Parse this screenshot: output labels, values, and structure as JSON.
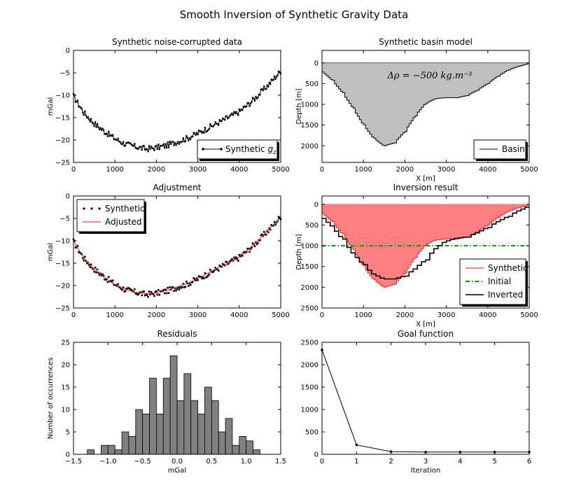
{
  "suptitle": "Smooth Inversion of Synthetic Gravity Data",
  "colors": {
    "data": "#000000",
    "adjusted": "#e31a1c",
    "basin_fill": "#bfbfbf",
    "inv_fill": "#ff8080",
    "initial": "#009900",
    "hist_bar": "#808080"
  },
  "chart_data": [
    {
      "id": "data",
      "type": "line",
      "title": "Synthetic noise-corrupted data",
      "xlabel": "",
      "ylabel": "mGal",
      "xlim": [
        0,
        5000
      ],
      "ylim": [
        -25,
        0
      ],
      "xticks": [
        "0",
        "1000",
        "2000",
        "3000",
        "4000",
        "5000"
      ],
      "yticks": [
        "0",
        "−5",
        "−10",
        "−15",
        "−20",
        "−25"
      ],
      "legend": {
        "position": "lower right",
        "entries": [
          "Synthetic $g_z$"
        ]
      },
      "series": [
        {
          "name": "Synthetic $g_z$",
          "marker": "dot",
          "x": [
            0,
            250,
            500,
            750,
            1000,
            1250,
            1500,
            1750,
            2000,
            2250,
            2500,
            2750,
            3000,
            3250,
            3500,
            3750,
            4000,
            4250,
            4500,
            4750,
            5000
          ],
          "y": [
            -10.2,
            -13.9,
            -16.3,
            -18.1,
            -19.7,
            -20.9,
            -21.5,
            -22.0,
            -21.7,
            -21.2,
            -20.4,
            -19.6,
            -18.5,
            -17.3,
            -16.1,
            -14.9,
            -13.7,
            -11.8,
            -9.6,
            -7.2,
            -4.6
          ]
        }
      ]
    },
    {
      "id": "basin",
      "type": "area",
      "title": "Synthetic basin model",
      "xlabel": "X [m]",
      "ylabel": "Depth [m]",
      "xlim": [
        0,
        5000
      ],
      "ylim": [
        2400,
        -300
      ],
      "y_inverted": true,
      "xticks": [
        "0",
        "1000",
        "2000",
        "3000",
        "4000",
        "5000"
      ],
      "yticks": [
        "0",
        "500",
        "1000",
        "1500",
        "2000"
      ],
      "annotation": "Δρ = −500 kg.m⁻³",
      "legend": {
        "position": "lower right",
        "entries": [
          "Basin"
        ]
      },
      "series": [
        {
          "name": "Basin",
          "x": [
            0,
            250,
            500,
            750,
            1000,
            1250,
            1500,
            1750,
            2000,
            2250,
            2500,
            2750,
            3000,
            3250,
            3500,
            3750,
            4000,
            4250,
            4500,
            4750,
            5000
          ],
          "depth": [
            200,
            420,
            720,
            1090,
            1490,
            1820,
            2000,
            1930,
            1660,
            1280,
            980,
            860,
            840,
            840,
            790,
            660,
            500,
            320,
            170,
            80,
            20
          ]
        }
      ]
    },
    {
      "id": "adjust",
      "type": "line",
      "title": "Adjustment",
      "xlabel": "",
      "ylabel": "mGal",
      "xlim": [
        0,
        5000
      ],
      "ylim": [
        -25,
        0
      ],
      "xticks": [
        "0",
        "1000",
        "2000",
        "3000",
        "4000",
        "5000"
      ],
      "yticks": [
        "0",
        "−5",
        "−10",
        "−15",
        "−20",
        "−25"
      ],
      "legend": {
        "position": "upper left",
        "entries": [
          "Synthetic",
          "Adjusted"
        ]
      },
      "series": [
        {
          "name": "Synthetic",
          "marker": "square",
          "x": [
            0,
            250,
            500,
            750,
            1000,
            1250,
            1500,
            1750,
            2000,
            2250,
            2500,
            2750,
            3000,
            3250,
            3500,
            3750,
            4000,
            4250,
            4500,
            4750,
            5000
          ],
          "y": [
            -10.2,
            -13.9,
            -16.3,
            -18.1,
            -19.7,
            -20.9,
            -21.5,
            -22.0,
            -21.7,
            -21.2,
            -20.4,
            -19.6,
            -18.5,
            -17.3,
            -16.1,
            -14.9,
            -13.7,
            -11.8,
            -9.6,
            -7.2,
            -4.6
          ]
        },
        {
          "name": "Adjusted",
          "x": [
            0,
            250,
            500,
            750,
            1000,
            1250,
            1500,
            1750,
            2000,
            2250,
            2500,
            2750,
            3000,
            3250,
            3500,
            3750,
            4000,
            4250,
            4500,
            4750,
            5000
          ],
          "y": [
            -10.1,
            -13.8,
            -16.4,
            -18.2,
            -19.8,
            -20.9,
            -21.5,
            -21.8,
            -21.7,
            -21.1,
            -20.3,
            -19.5,
            -18.4,
            -17.2,
            -16.0,
            -14.9,
            -13.6,
            -11.7,
            -9.5,
            -7.1,
            -4.8
          ]
        }
      ]
    },
    {
      "id": "inversion",
      "type": "area",
      "title": "Inversion result",
      "xlabel": "X [m]",
      "ylabel": "Depth [m]",
      "xlim": [
        0,
        5000
      ],
      "ylim": [
        2500,
        -200
      ],
      "y_inverted": true,
      "xticks": [
        "0",
        "1000",
        "2000",
        "3000",
        "4000",
        "5000"
      ],
      "yticks": [
        "0",
        "500",
        "1000",
        "1500",
        "2000",
        "2500"
      ],
      "legend": {
        "position": "lower right",
        "entries": [
          "Synthetic",
          "Initial",
          "Inverted"
        ]
      },
      "series": [
        {
          "name": "Synthetic",
          "x": [
            0,
            250,
            500,
            750,
            1000,
            1250,
            1500,
            1750,
            2000,
            2250,
            2500,
            2750,
            3000,
            3250,
            3500,
            3750,
            4000,
            4250,
            4500,
            4750,
            5000
          ],
          "depth": [
            200,
            420,
            720,
            1090,
            1490,
            1820,
            2000,
            1930,
            1660,
            1280,
            980,
            860,
            840,
            840,
            790,
            660,
            500,
            320,
            170,
            80,
            20
          ]
        },
        {
          "name": "Initial",
          "x": [
            0,
            5000
          ],
          "depth": [
            1000,
            1000
          ]
        },
        {
          "name": "Inverted",
          "x": [
            0,
            250,
            500,
            750,
            1000,
            1250,
            1500,
            1750,
            2000,
            2250,
            2500,
            2750,
            3000,
            3250,
            3500,
            3750,
            4000,
            4250,
            4500,
            4750,
            5000
          ],
          "depth": [
            300,
            520,
            840,
            1170,
            1450,
            1680,
            1800,
            1800,
            1730,
            1560,
            1340,
            1070,
            880,
            820,
            790,
            690,
            560,
            420,
            290,
            160,
            50
          ]
        }
      ]
    },
    {
      "id": "residuals",
      "type": "bar",
      "title": "Residuals",
      "xlabel": "mGal",
      "ylabel": "Number of occurrences",
      "xlim": [
        -1.5,
        1.5
      ],
      "ylim": [
        0,
        25
      ],
      "xticks": [
        "−1.5",
        "−1.0",
        "−0.5",
        "0.0",
        "0.5",
        "1.0",
        "1.5"
      ],
      "yticks": [
        "0",
        "5",
        "10",
        "15",
        "20",
        "25"
      ],
      "bin_edges": [
        -1.3,
        -1.2,
        -1.1,
        -1.0,
        -0.9,
        -0.8,
        -0.7,
        -0.6,
        -0.5,
        -0.4,
        -0.3,
        -0.2,
        -0.1,
        0.0,
        0.1,
        0.2,
        0.3,
        0.4,
        0.5,
        0.6,
        0.7,
        0.8,
        0.9,
        1.0,
        1.1,
        1.2
      ],
      "values": [
        1,
        0,
        2,
        2,
        1,
        5,
        4,
        10,
        9,
        17,
        9,
        17,
        22,
        12,
        18,
        12,
        9,
        15,
        12,
        5,
        8,
        2,
        4,
        3,
        1
      ]
    },
    {
      "id": "goal",
      "type": "line",
      "title": "Goal function",
      "xlabel": "Iteration",
      "ylabel": "",
      "xlim": [
        0,
        6
      ],
      "ylim": [
        0,
        2500
      ],
      "xticks": [
        "0",
        "1",
        "2",
        "3",
        "4",
        "5",
        "6"
      ],
      "yticks": [
        "0",
        "500",
        "1000",
        "1500",
        "2000",
        "2500"
      ],
      "series": [
        {
          "name": "",
          "x": [
            0,
            1,
            2,
            3,
            4,
            5,
            6
          ],
          "y": [
            2330,
            210,
            60,
            50,
            50,
            50,
            50
          ]
        }
      ]
    }
  ]
}
